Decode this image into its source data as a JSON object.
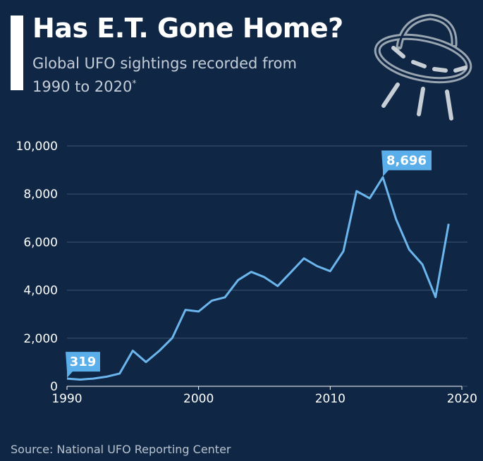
{
  "header": {
    "title": "Has E.T. Gone Home?",
    "subtitle": "Global UFO sightings recorded from 1990 to 2020",
    "subtitle_mark": "*"
  },
  "footer": {
    "source": "Source: National UFO Reporting Center"
  },
  "icon": {
    "name": "ufo-icon"
  },
  "colors": {
    "background": "#0f2744",
    "line": "#6cb6ee",
    "callout": "#5aaeea",
    "grid": "#3b5572"
  },
  "chart_data": {
    "type": "line",
    "title": "Has E.T. Gone Home?",
    "xlabel": "",
    "ylabel": "",
    "xlim": [
      1990,
      2020
    ],
    "ylim": [
      0,
      10000
    ],
    "grid": true,
    "x_ticks": [
      "1990",
      "2000",
      "2010",
      "2020"
    ],
    "y_ticks": [
      "0",
      "2,000",
      "4,000",
      "6,000",
      "8,000",
      "10,000"
    ],
    "x": [
      1990,
      1991,
      1992,
      1993,
      1994,
      1995,
      1996,
      1997,
      1998,
      1999,
      2000,
      2001,
      2002,
      2003,
      2004,
      2005,
      2006,
      2007,
      2008,
      2009,
      2010,
      2011,
      2012,
      2013,
      2014,
      2015,
      2016,
      2017,
      2018,
      2019
    ],
    "values": [
      319,
      280,
      320,
      400,
      530,
      1480,
      1010,
      1470,
      2010,
      3180,
      3110,
      3560,
      3700,
      4420,
      4760,
      4540,
      4170,
      4740,
      5320,
      5000,
      4790,
      5620,
      8120,
      7820,
      8696,
      6950,
      5690,
      5070,
      3710,
      6760
    ],
    "annotations": [
      {
        "x": 1990,
        "value": 319,
        "label": "319"
      },
      {
        "x": 2014,
        "value": 8696,
        "label": "8,696"
      }
    ]
  }
}
